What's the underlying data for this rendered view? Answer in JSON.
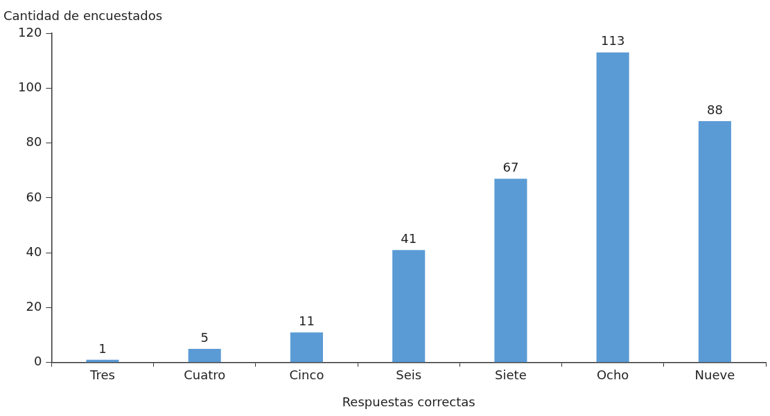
{
  "chart_data": {
    "type": "bar",
    "ylabel": "Cantidad de encuestados",
    "xlabel": "Respuestas correctas",
    "categories": [
      "Tres",
      "Cuatro",
      "Cinco",
      "Seis",
      "Siete",
      "Ocho",
      "Nueve"
    ],
    "values": [
      1,
      5,
      11,
      41,
      67,
      113,
      88
    ],
    "color": "#5b9bd5",
    "ylim": [
      0,
      120
    ],
    "yticks": [
      0,
      20,
      40,
      60,
      80,
      100,
      120
    ],
    "grid": false,
    "data_labels": true
  }
}
